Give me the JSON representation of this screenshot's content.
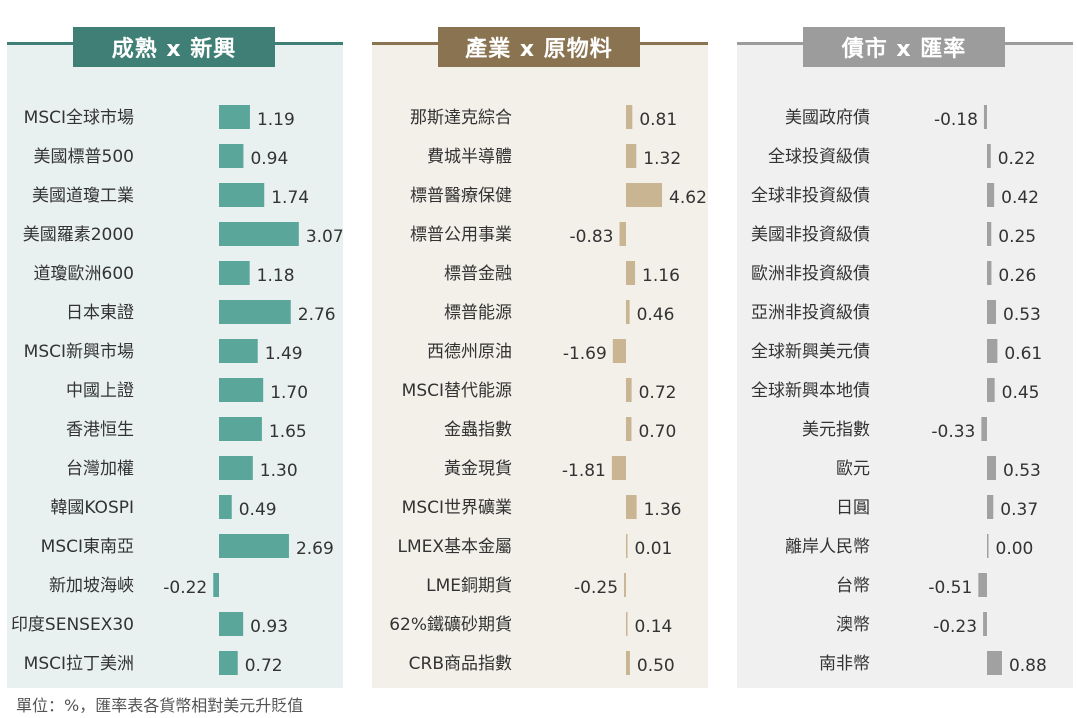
{
  "footnote": "單位：%，匯率表各貨幣相對美元升貶值",
  "colors": {
    "panel1_bar": "#5aa69b",
    "panel1_header": "#3f7f75",
    "panel1_bg": "#e8f1f0",
    "panel2_bar": "#c9b591",
    "panel2_header": "#8a7350",
    "panel2_bg": "#f3f0ea",
    "panel3_bar": "#a1a1a1",
    "panel3_header": "#9c9c9c",
    "panel3_bg": "#f0f0f0"
  },
  "chart_data": [
    {
      "type": "bar",
      "orientation": "horizontal",
      "title": "成熟 x 新興",
      "categories": [
        "MSCI全球市場",
        "美國標普500",
        "美國道瓊工業",
        "美國羅素2000",
        "道瓊歐洲600",
        "日本東證",
        "MSCI新興市場",
        "中國上證",
        "香港恒生",
        "台灣加權",
        "韓國KOSPI",
        "MSCI東南亞",
        "新加坡海峽",
        "印度SENSEX30",
        "MSCI拉丁美洲"
      ],
      "values": [
        1.19,
        0.94,
        1.74,
        3.07,
        1.18,
        2.76,
        1.49,
        1.7,
        1.65,
        1.3,
        0.49,
        2.69,
        -0.22,
        0.93,
        0.72
      ],
      "labels": [
        "1.19",
        "0.94",
        "1.74",
        "3.07",
        "1.18",
        "2.76",
        "1.49",
        "1.70",
        "1.65",
        "1.30",
        "0.49",
        "2.69",
        "-0.22",
        "0.93",
        "0.72"
      ]
    },
    {
      "type": "bar",
      "orientation": "horizontal",
      "title": "產業 x 原物料",
      "categories": [
        "那斯達克綜合",
        "費城半導體",
        "標普醫療保健",
        "標普公用事業",
        "標普金融",
        "標普能源",
        "西德州原油",
        "MSCI替代能源",
        "金蟲指數",
        "黃金現貨",
        "MSCI世界礦業",
        "LMEX基本金屬",
        "LME銅期貨",
        "62%鐵礦砂期貨",
        "CRB商品指數"
      ],
      "values": [
        0.81,
        1.32,
        4.62,
        -0.83,
        1.16,
        0.46,
        -1.69,
        0.72,
        0.7,
        -1.81,
        1.36,
        0.01,
        -0.25,
        0.14,
        0.5
      ],
      "labels": [
        "0.81",
        "1.32",
        "4.62",
        "-0.83",
        "1.16",
        "0.46",
        "-1.69",
        "0.72",
        "0.70",
        "-1.81",
        "1.36",
        "0.01",
        "-0.25",
        "0.14",
        "0.50"
      ]
    },
    {
      "type": "bar",
      "orientation": "horizontal",
      "title": "債市 x 匯率",
      "categories": [
        "美國政府債",
        "全球投資級債",
        "全球非投資級債",
        "美國非投資級債",
        "歐洲非投資級債",
        "亞洲非投資級債",
        "全球新興美元債",
        "全球新興本地債",
        "美元指數",
        "歐元",
        "日圓",
        "離岸人民幣",
        "台幣",
        "澳幣",
        "南非幣"
      ],
      "values": [
        -0.18,
        0.22,
        0.42,
        0.25,
        0.26,
        0.53,
        0.61,
        0.45,
        -0.33,
        0.53,
        0.37,
        0.0,
        -0.51,
        -0.23,
        0.88
      ],
      "labels": [
        "-0.18",
        "0.22",
        "0.42",
        "0.25",
        "0.26",
        "0.53",
        "0.61",
        "0.45",
        "-0.33",
        "0.53",
        "0.37",
        "0.00",
        "-0.51",
        "-0.23",
        "0.88"
      ]
    }
  ]
}
